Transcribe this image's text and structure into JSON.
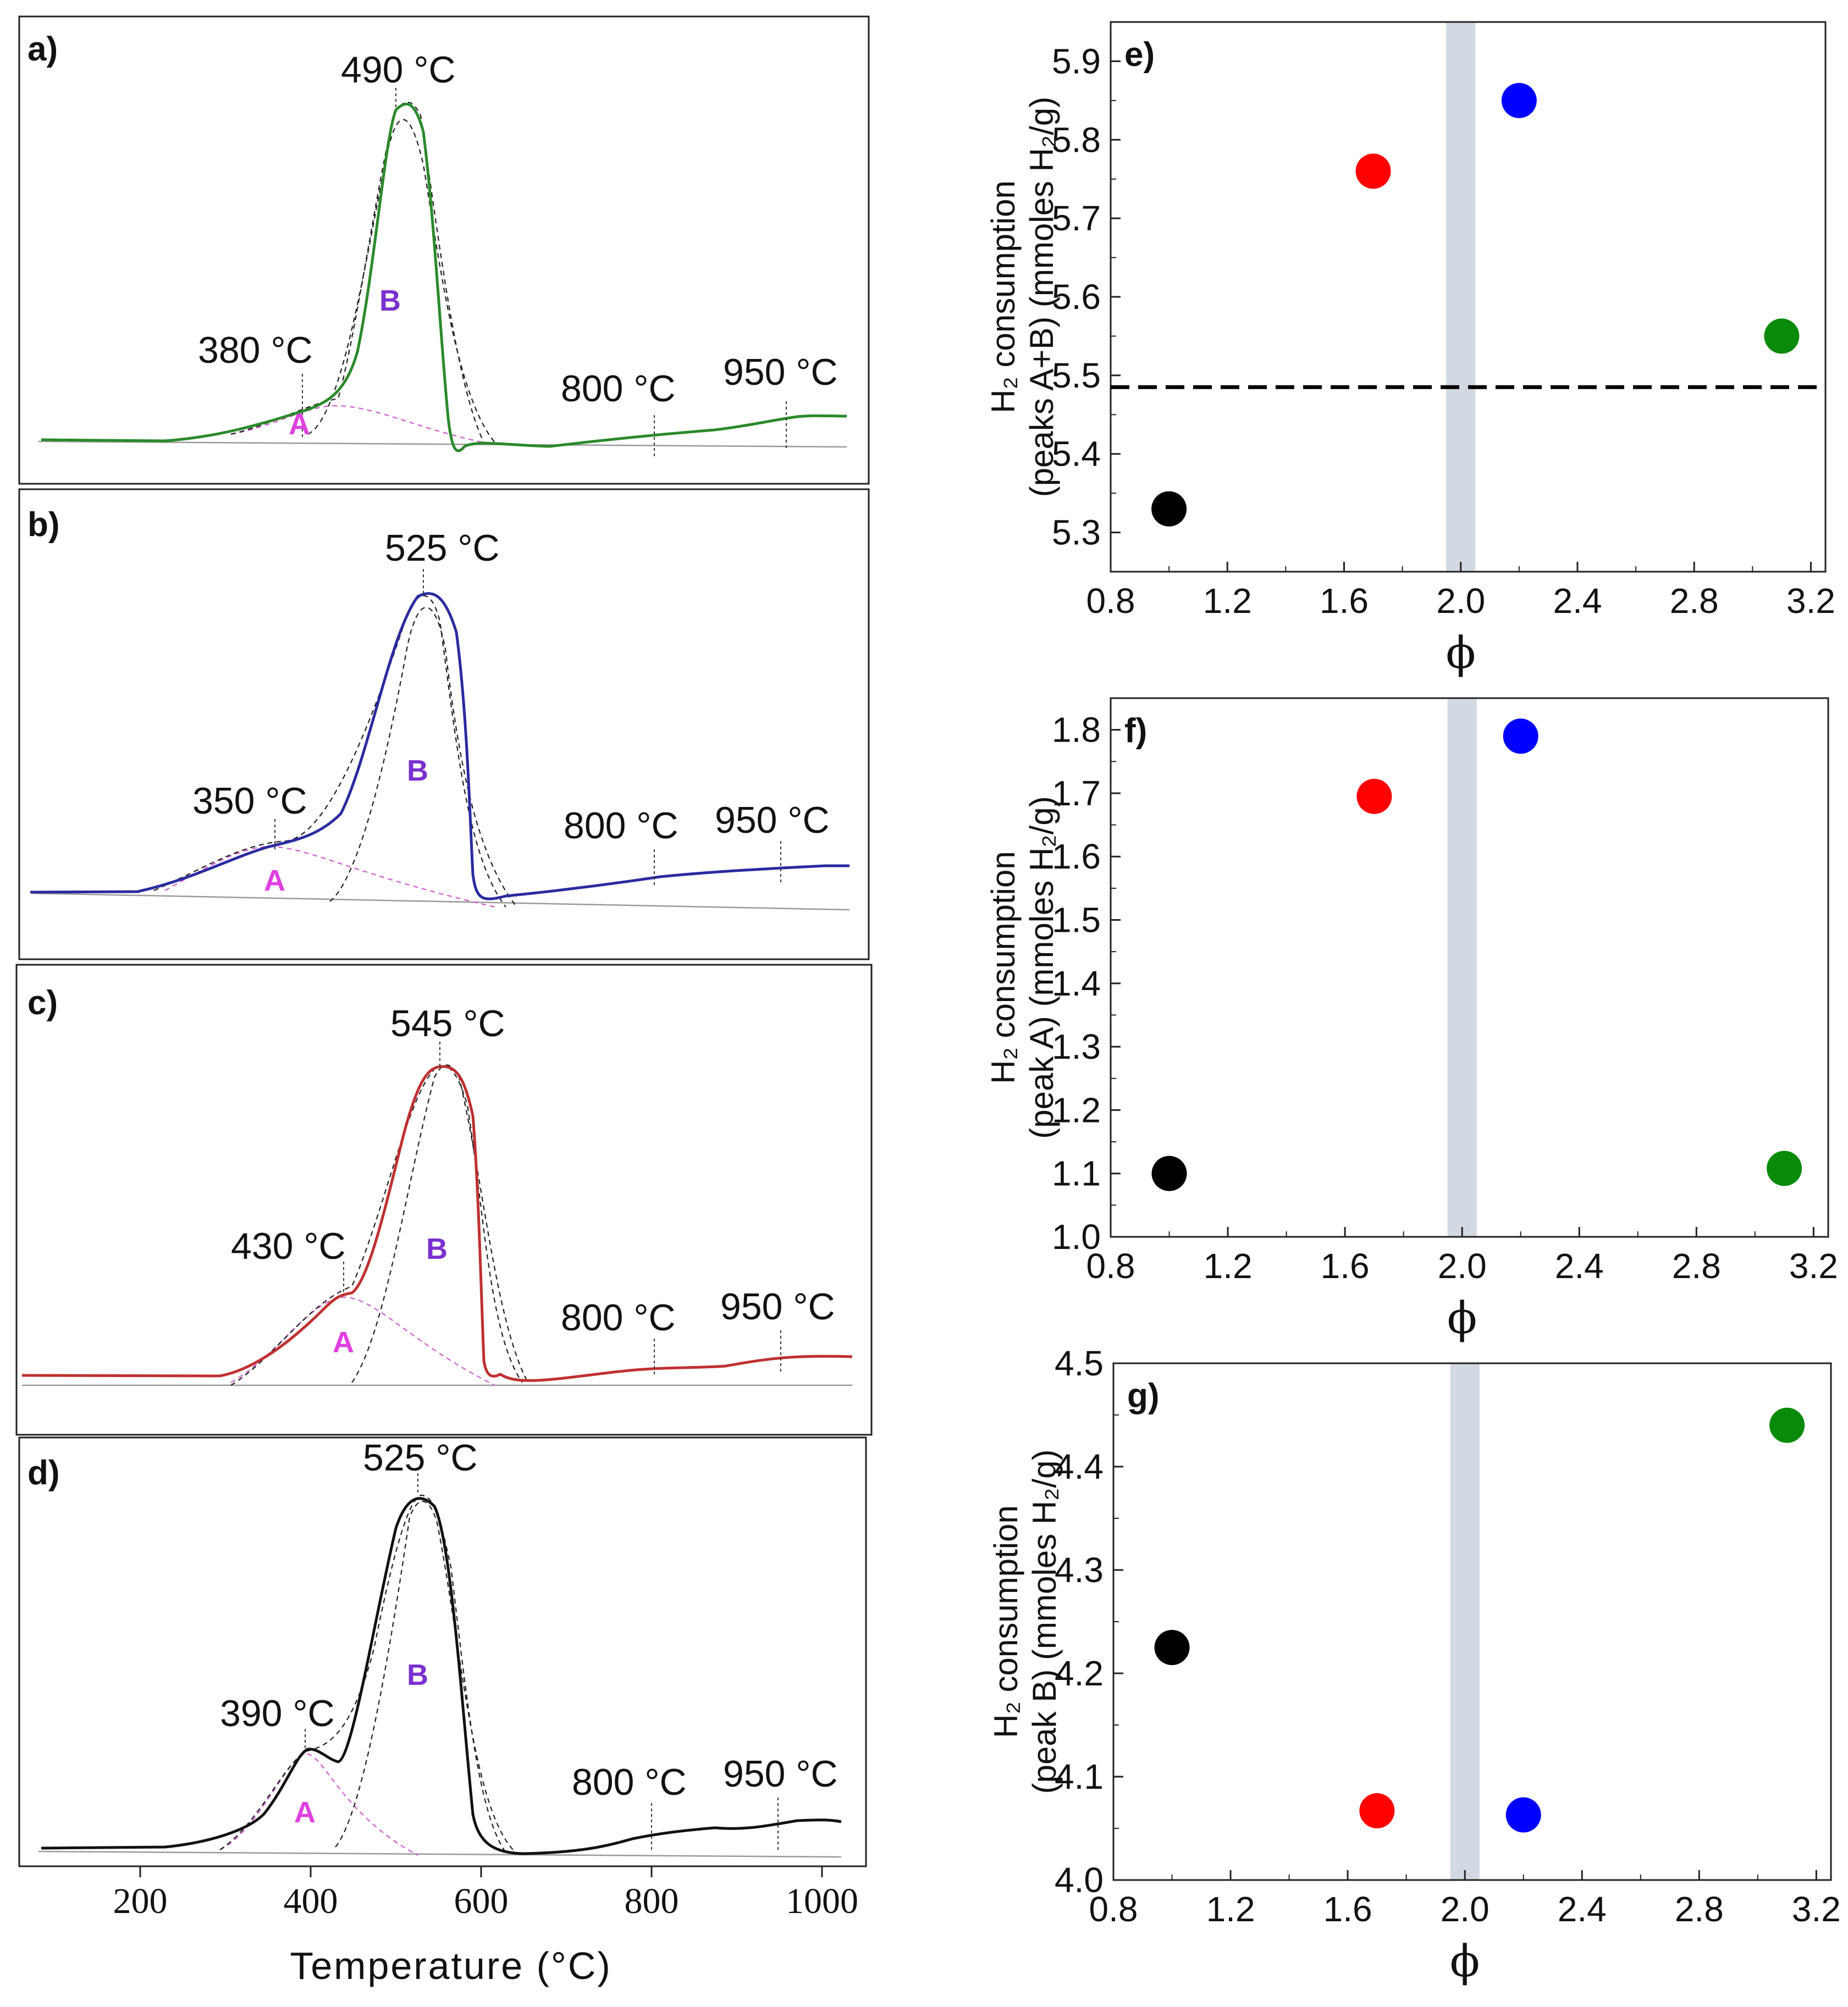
{
  "chart_data": [
    {
      "panel": "a)",
      "type": "line",
      "color": "#2a8a2a",
      "peak_temps": [
        "380 °C",
        "490 °C",
        "800 °C",
        "950 °C"
      ],
      "peak_labels": [
        "A",
        "B"
      ],
      "deconvolution": {
        "A_center": 420,
        "B_center": 495
      }
    },
    {
      "panel": "b)",
      "type": "line",
      "color": "#2a2aa0",
      "peak_temps": [
        "350 °C",
        "525 °C",
        "800 °C",
        "950 °C"
      ],
      "peak_labels": [
        "A",
        "B"
      ],
      "deconvolution": {
        "A_center": 370,
        "B_center": 530
      }
    },
    {
      "panel": "c)",
      "type": "line",
      "color": "#c03030",
      "peak_temps": [
        "430 °C",
        "545 °C",
        "800 °C",
        "950 °C"
      ],
      "peak_labels": [
        "A",
        "B"
      ],
      "deconvolution": {
        "A_center": 440,
        "B_center": 550
      }
    },
    {
      "panel": "d)",
      "type": "line",
      "color": "#111111",
      "peak_temps": [
        "390 °C",
        "525 °C",
        "800 °C",
        "950 °C"
      ],
      "peak_labels": [
        "A",
        "B"
      ],
      "deconvolution": {
        "A_center": 395,
        "B_center": 525
      },
      "xlabel": "Temperature (°C)",
      "xticks": [
        "200",
        "400",
        "600",
        "800",
        "1000"
      ]
    },
    {
      "panel": "e)",
      "type": "scatter",
      "ylabel_line1": "H₂ consumption",
      "ylabel_line2": "(peaks A+B) (mmoles H₂/g)",
      "xlabel": "ϕ",
      "xlim": [
        0.8,
        3.25
      ],
      "ylim": [
        5.25,
        5.95
      ],
      "xticks": [
        "0.8",
        "1.2",
        "1.6",
        "2.0",
        "2.4",
        "2.8",
        "3.2"
      ],
      "yticks": [
        "5.3",
        "5.4",
        "5.5",
        "5.6",
        "5.7",
        "5.8",
        "5.9"
      ],
      "shaded_band": [
        1.95,
        2.05
      ],
      "dashed_hline": 5.485,
      "points": [
        {
          "x": 1.0,
          "y": 5.33,
          "color": "#000000"
        },
        {
          "x": 1.7,
          "y": 5.76,
          "color": "#ff0000"
        },
        {
          "x": 2.2,
          "y": 5.85,
          "color": "#0000ff"
        },
        {
          "x": 3.1,
          "y": 5.55,
          "color": "#0a8a0a"
        }
      ]
    },
    {
      "panel": "f)",
      "type": "scatter",
      "ylabel_line1": "H₂ consumption",
      "ylabel_line2": "(peak A) (mmoles H₂/g)",
      "xlabel": "ϕ",
      "xlim": [
        0.8,
        3.25
      ],
      "ylim": [
        1.0,
        1.85
      ],
      "xticks": [
        "0.8",
        "1.2",
        "1.6",
        "2.0",
        "2.4",
        "2.8",
        "3.2"
      ],
      "yticks": [
        "1.0",
        "1.1",
        "1.2",
        "1.3",
        "1.4",
        "1.5",
        "1.6",
        "1.7",
        "1.8"
      ],
      "shaded_band": [
        1.95,
        2.05
      ],
      "points": [
        {
          "x": 1.0,
          "y": 1.1,
          "color": "#000000"
        },
        {
          "x": 1.7,
          "y": 1.695,
          "color": "#ff0000"
        },
        {
          "x": 2.2,
          "y": 1.79,
          "color": "#0000ff"
        },
        {
          "x": 3.1,
          "y": 1.108,
          "color": "#0a8a0a"
        }
      ]
    },
    {
      "panel": "g)",
      "type": "scatter",
      "ylabel_line1": "H₂ consumption",
      "ylabel_line2": "(peak B) (mmoles H₂/g)",
      "xlabel": "ϕ",
      "xlim": [
        0.8,
        3.25
      ],
      "ylim": [
        4.0,
        4.5
      ],
      "xticks": [
        "0.8",
        "1.2",
        "1.6",
        "2.0",
        "2.4",
        "2.8",
        "3.2"
      ],
      "yticks": [
        "4.0",
        "4.1",
        "4.2",
        "4.3",
        "4.4",
        "4.5"
      ],
      "shaded_band": [
        1.95,
        2.05
      ],
      "points": [
        {
          "x": 1.0,
          "y": 4.225,
          "color": "#000000"
        },
        {
          "x": 1.7,
          "y": 4.067,
          "color": "#ff0000"
        },
        {
          "x": 2.2,
          "y": 4.063,
          "color": "#0000ff"
        },
        {
          "x": 3.1,
          "y": 4.44,
          "color": "#0a8a0a"
        }
      ]
    }
  ]
}
